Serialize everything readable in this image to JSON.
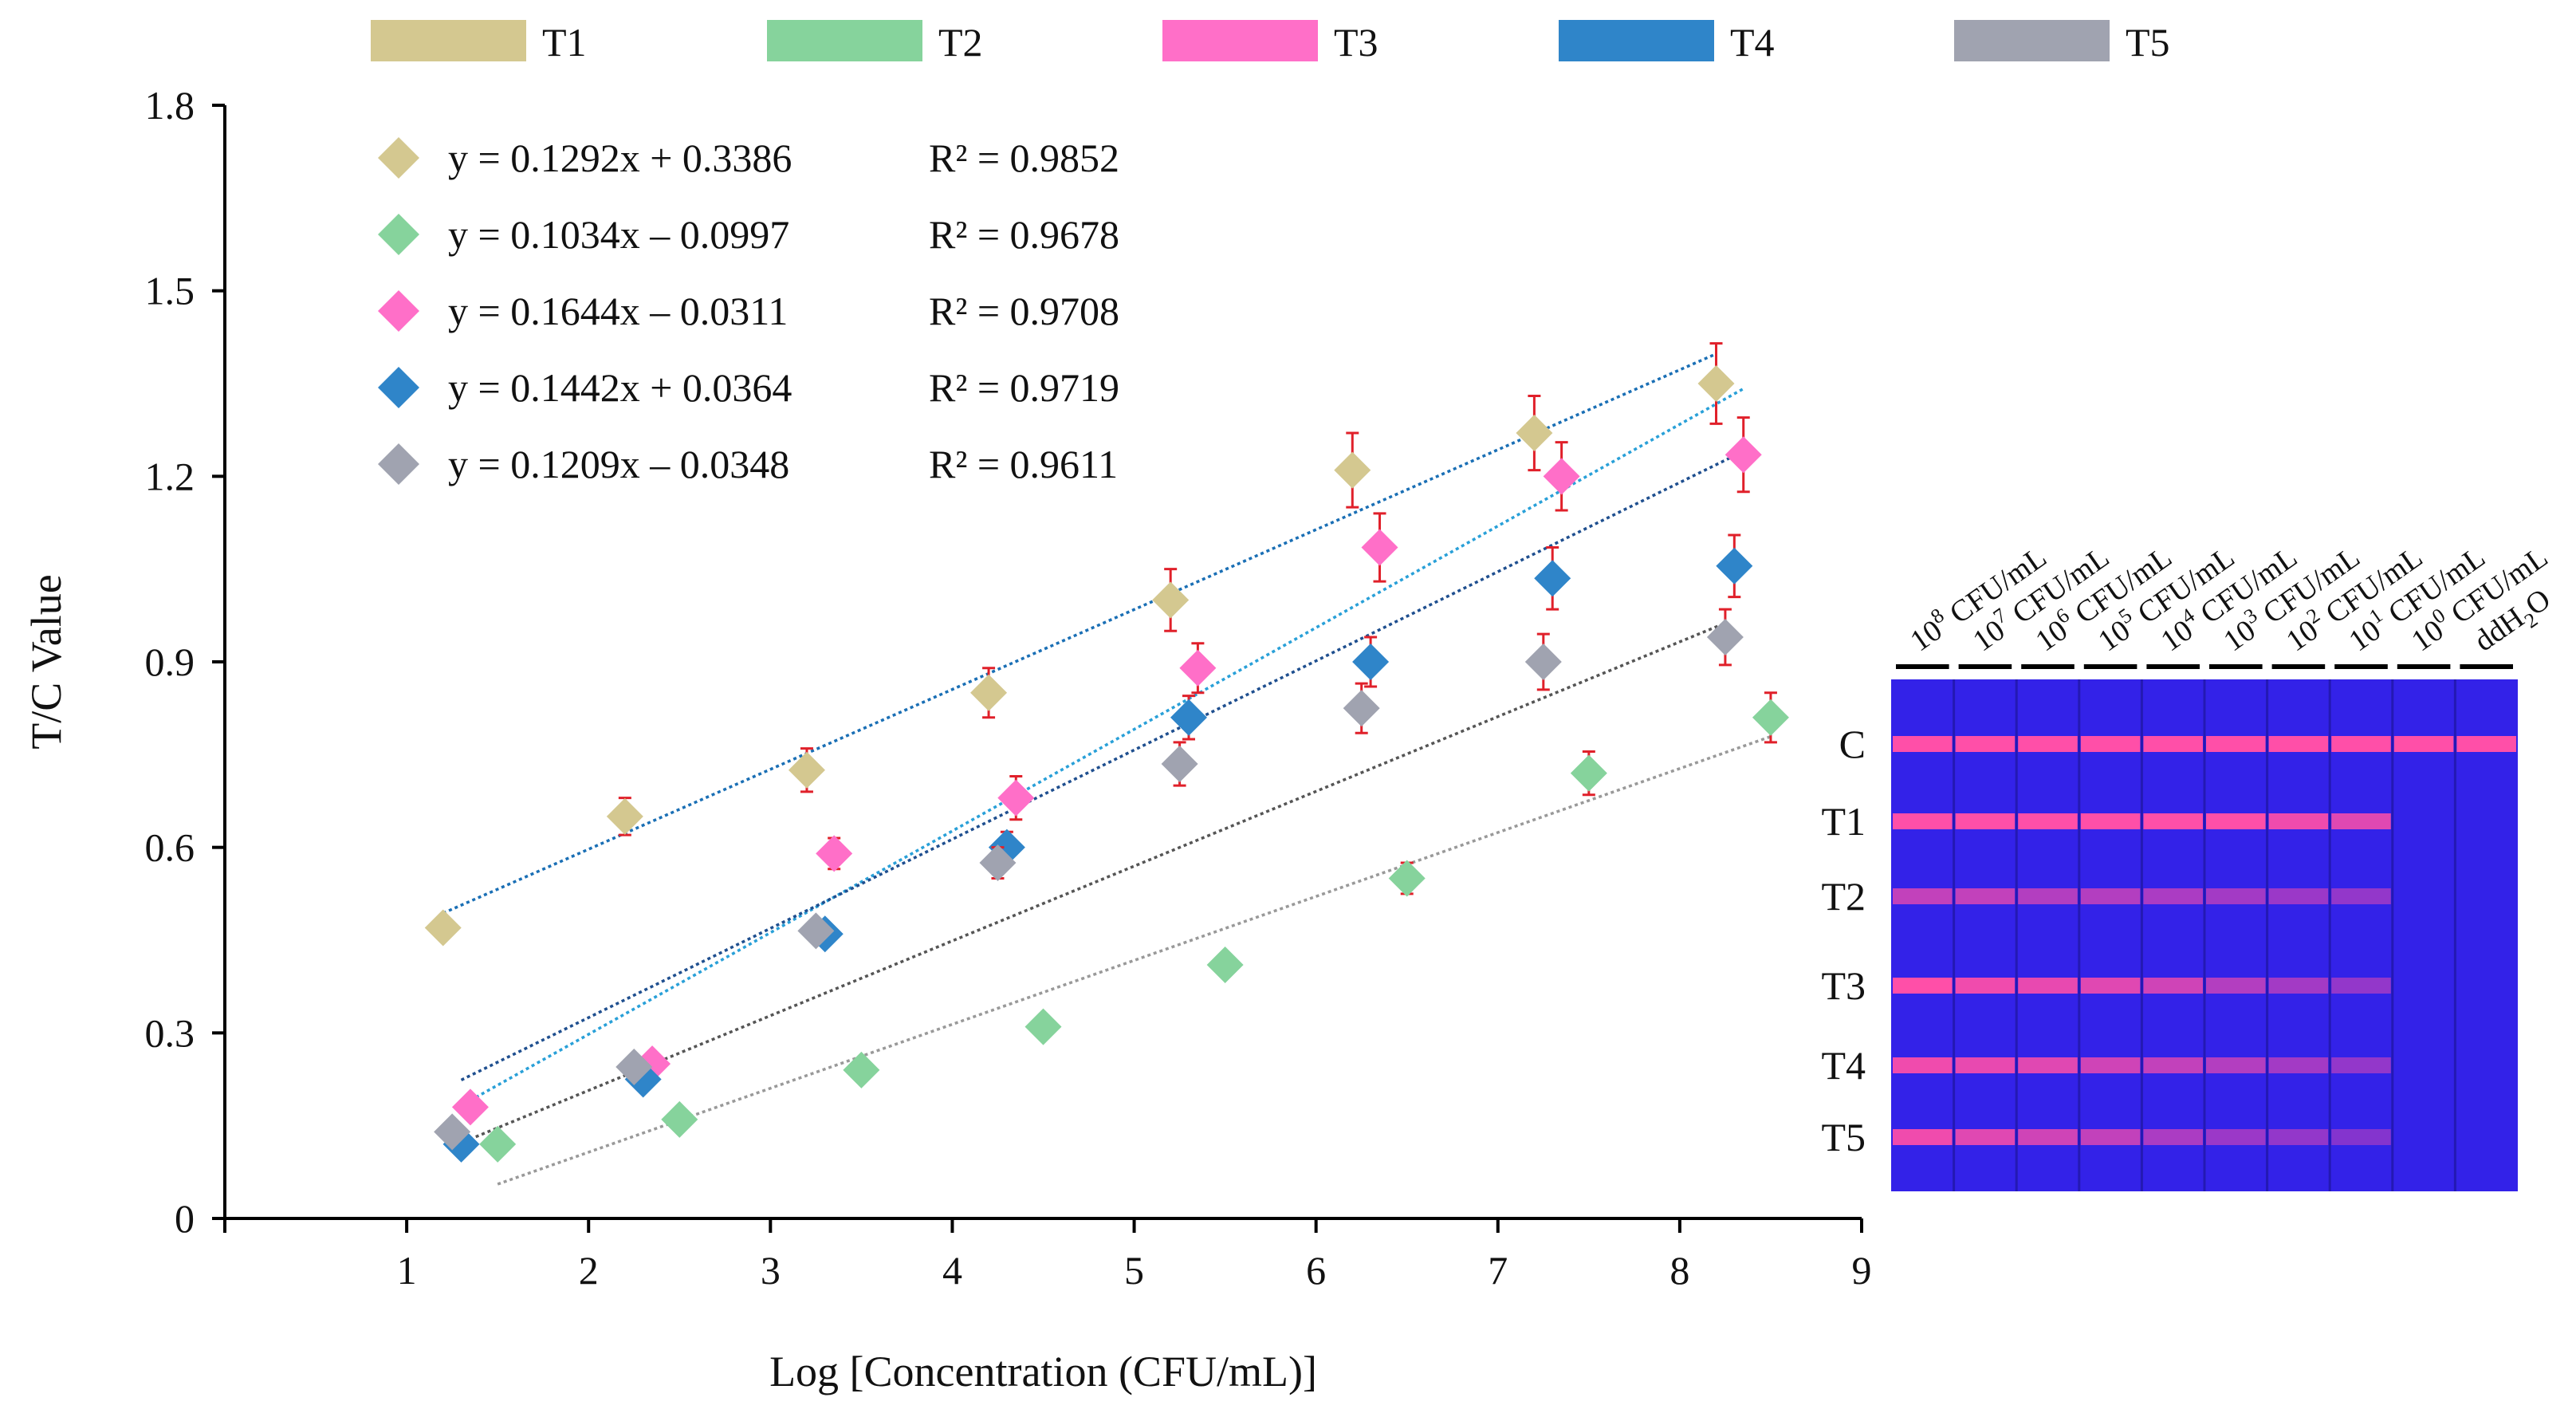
{
  "chart_data": {
    "type": "scatter",
    "title": "",
    "xlabel": "Log [Concentration (CFU/mL)]",
    "ylabel": "T/C Value",
    "xlim": [
      0,
      9
    ],
    "ylim": [
      0,
      1.8
    ],
    "xticks": [
      "1",
      "2",
      "3",
      "4",
      "5",
      "6",
      "7",
      "8",
      "9"
    ],
    "yticks": [
      "0",
      "0.3",
      "0.6",
      "0.9",
      "1.2",
      "1.5",
      "1.8"
    ],
    "legend": [
      "T1",
      "T2",
      "T3",
      "T4",
      "T5"
    ],
    "series": [
      {
        "name": "T1",
        "color": "#d4c890",
        "x": [
          1.2,
          2.2,
          3.2,
          4.2,
          5.2,
          6.2,
          7.2,
          8.2
        ],
        "y": [
          0.47,
          0.65,
          0.725,
          0.85,
          1.0,
          1.21,
          1.27,
          1.35
        ],
        "err": [
          0,
          0.03,
          0.035,
          0.04,
          0.05,
          0.06,
          0.06,
          0.065
        ],
        "equation": "y = 0.1292x + 0.3386",
        "r2": "R² = 0.9852",
        "fit": {
          "slope": 0.1292,
          "intercept": 0.3386,
          "x0": 1.2,
          "x1": 8.2
        },
        "trend_color": "#1a6fb5"
      },
      {
        "name": "T2",
        "color": "#86d39c",
        "x": [
          1.5,
          2.5,
          3.5,
          4.5,
          5.5,
          6.5,
          7.5,
          8.5
        ],
        "y": [
          0.12,
          0.16,
          0.24,
          0.31,
          0.41,
          0.55,
          0.72,
          0.81
        ],
        "err": [
          0,
          0,
          0,
          0,
          0,
          0.025,
          0.035,
          0.04
        ],
        "equation": "y = 0.1034x – 0.0997",
        "r2": "R² = 0.9678",
        "fit": {
          "slope": 0.1034,
          "intercept": -0.0997,
          "x0": 1.5,
          "x1": 8.5
        },
        "trend_color": "#999999"
      },
      {
        "name": "T3",
        "color": "#ff6fc8",
        "x": [
          1.35,
          2.35,
          3.35,
          4.35,
          5.35,
          6.35,
          7.35,
          8.35
        ],
        "y": [
          0.18,
          0.25,
          0.59,
          0.68,
          0.89,
          1.085,
          1.2,
          1.235
        ],
        "err": [
          0,
          0,
          0.025,
          0.035,
          0.04,
          0.055,
          0.055,
          0.06
        ],
        "equation": "y = 0.1644x – 0.0311",
        "r2": "R² = 0.9708",
        "fit": {
          "slope": 0.1644,
          "intercept": -0.0311,
          "x0": 1.35,
          "x1": 8.35
        },
        "trend_color": "#29a0d8"
      },
      {
        "name": "T4",
        "color": "#2f85c9",
        "x": [
          1.3,
          2.3,
          3.3,
          4.3,
          5.3,
          6.3,
          7.3,
          8.3
        ],
        "y": [
          0.12,
          0.225,
          0.46,
          0.6,
          0.81,
          0.9,
          1.035,
          1.055
        ],
        "err": [
          0,
          0,
          0,
          0.025,
          0.035,
          0.04,
          0.05,
          0.05
        ],
        "equation": "y = 0.1442x + 0.0364",
        "r2": "R² = 0.9719",
        "fit": {
          "slope": 0.1442,
          "intercept": 0.0364,
          "x0": 1.3,
          "x1": 8.3
        },
        "trend_color": "#1f4f8f"
      },
      {
        "name": "T5",
        "color": "#a0a3b0",
        "x": [
          1.25,
          2.25,
          3.25,
          4.25,
          5.25,
          6.25,
          7.25,
          8.25
        ],
        "y": [
          0.14,
          0.245,
          0.465,
          0.575,
          0.735,
          0.825,
          0.9,
          0.94
        ],
        "err": [
          0,
          0,
          0,
          0.025,
          0.035,
          0.04,
          0.045,
          0.045
        ],
        "equation": "y = 0.1209x – 0.0348",
        "r2": "R² = 0.9611",
        "fit": {
          "slope": 0.1209,
          "intercept": -0.0348,
          "x0": 1.25,
          "x1": 8.25
        },
        "trend_color": "#555555"
      }
    ],
    "error_bar_color": "#e0202a"
  },
  "strip_image": {
    "concentration_labels": [
      {
        "base": "10",
        "exp": "8",
        "unit": " CFU/mL"
      },
      {
        "base": "10",
        "exp": "7",
        "unit": " CFU/mL"
      },
      {
        "base": "10",
        "exp": "6",
        "unit": " CFU/mL"
      },
      {
        "base": "10",
        "exp": "5",
        "unit": " CFU/mL"
      },
      {
        "base": "10",
        "exp": "4",
        "unit": " CFU/mL"
      },
      {
        "base": "10",
        "exp": "3",
        "unit": " CFU/mL"
      },
      {
        "base": "10",
        "exp": "2",
        "unit": " CFU/mL"
      },
      {
        "base": "10",
        "exp": "1",
        "unit": " CFU/mL"
      },
      {
        "base": "10",
        "exp": "0",
        "unit": " CFU/mL"
      },
      {
        "base": "ddH",
        "exp": "2",
        "unit": "O",
        "sub": true
      }
    ],
    "row_labels": [
      "C",
      "T1",
      "T2",
      "T3",
      "T4",
      "T5"
    ],
    "band_intensity": [
      [
        1,
        1,
        1,
        1,
        1,
        1,
        1,
        1,
        1,
        1
      ],
      [
        1,
        1,
        1,
        1,
        1,
        1,
        0.9,
        0.8,
        0,
        0
      ],
      [
        0.6,
        0.6,
        0.5,
        0.5,
        0.45,
        0.4,
        0.35,
        0.3,
        0,
        0
      ],
      [
        1,
        0.9,
        0.85,
        0.8,
        0.7,
        0.5,
        0.4,
        0.3,
        0,
        0
      ],
      [
        0.9,
        0.85,
        0.8,
        0.7,
        0.6,
        0.5,
        0.4,
        0.3,
        0,
        0
      ],
      [
        0.9,
        0.8,
        0.7,
        0.6,
        0.45,
        0.35,
        0.3,
        0.2,
        0,
        0
      ]
    ],
    "background_color": "#3322e8",
    "band_color": "#ff4fa8"
  }
}
